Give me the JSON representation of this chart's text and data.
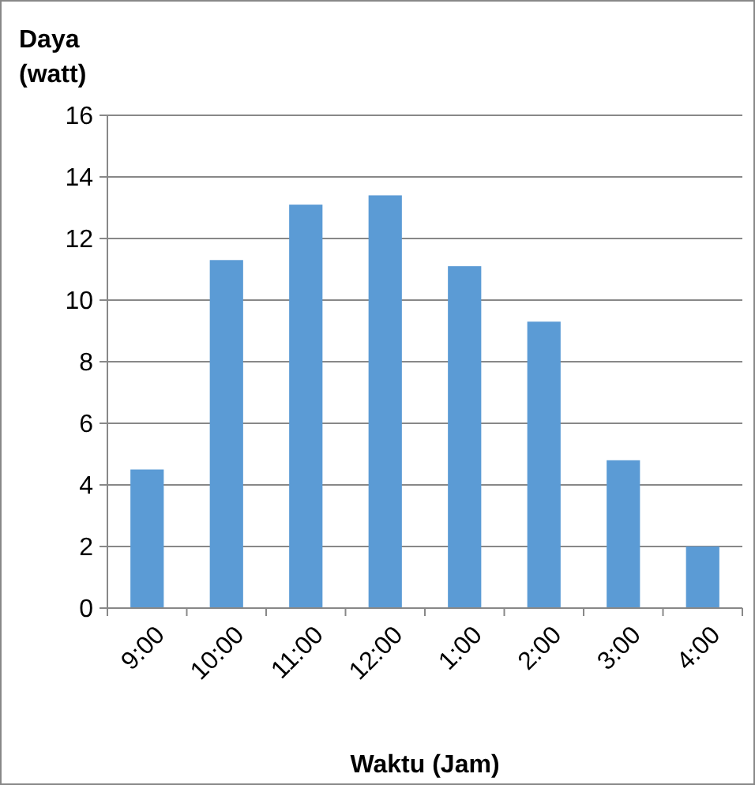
{
  "chart_data": {
    "type": "bar",
    "xlabel": "Waktu (Jam)",
    "ylabel": "Daya (watt)",
    "categories": [
      "9:00",
      "10:00",
      "11:00",
      "12:00",
      "1:00",
      "2:00",
      "3:00",
      "4:00"
    ],
    "values": [
      4.5,
      11.3,
      13.1,
      13.4,
      11.1,
      9.3,
      4.8,
      2.0
    ],
    "color": "#5b9bd5",
    "ylim": [
      0,
      16
    ],
    "yticks": [
      0,
      2,
      4,
      6,
      8,
      10,
      12,
      14,
      16
    ],
    "grid": "y"
  }
}
